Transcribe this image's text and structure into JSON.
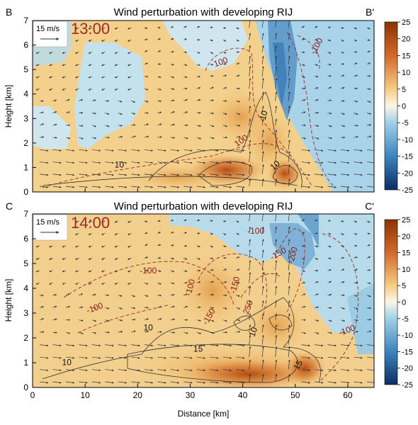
{
  "chart_data": [
    {
      "type": "heatmap",
      "panel_left_label": "B",
      "panel_right_label": "B'",
      "title": "Wind perturbation with developing RIJ",
      "time_label": "13:00",
      "reference_vector_label": "15 m/s",
      "ylabel": "Height [km]",
      "xlabel": "",
      "xlim": [
        0,
        65
      ],
      "ylim": [
        0,
        7
      ],
      "yticks": [
        0,
        1,
        2,
        3,
        4,
        5,
        6,
        7
      ],
      "xticks": [
        0,
        10,
        20,
        30,
        40,
        50,
        60
      ],
      "contour_labels": [
        {
          "text": "10",
          "x": 16.5,
          "y": 1.0,
          "color": "#111111"
        },
        {
          "text": "10",
          "x": 44.5,
          "y": 3.1,
          "color": "#111111",
          "rotate": -75
        },
        {
          "text": "10",
          "x": 46.5,
          "y": 1.0,
          "color": "#111111",
          "rotate": -40
        },
        {
          "text": "100",
          "x": 36.0,
          "y": 5.2,
          "color": "#8c1a1a",
          "rotate": -20
        },
        {
          "text": "100",
          "x": 40.0,
          "y": 2.0,
          "color": "#8c1a1a",
          "rotate": -35
        },
        {
          "text": "-100",
          "x": 54.5,
          "y": 5.9,
          "color": "#8c1a1a",
          "rotate": -60
        }
      ],
      "colorbar": {
        "min": -25,
        "max": 25,
        "ticks": [
          25,
          20,
          15,
          10,
          5,
          0,
          -5,
          -10,
          -15,
          -20,
          -25
        ]
      }
    },
    {
      "type": "heatmap",
      "panel_left_label": "C",
      "panel_right_label": "C'",
      "title": "Wind perturbation with developing RIJ",
      "time_label": "14:00",
      "reference_vector_label": "15 m/s",
      "ylabel": "Height [km]",
      "xlabel": "Distance [km]",
      "xlim": [
        0,
        65
      ],
      "ylim": [
        0,
        7
      ],
      "yticks": [
        0,
        1,
        2,
        3,
        4,
        5,
        6,
        7
      ],
      "xticks": [
        0,
        10,
        20,
        30,
        40,
        50,
        60
      ],
      "contour_labels": [
        {
          "text": "10",
          "x": 6.5,
          "y": 0.9,
          "color": "#111111"
        },
        {
          "text": "10",
          "x": 22.0,
          "y": 2.3,
          "color": "#111111"
        },
        {
          "text": "15",
          "x": 31.5,
          "y": 1.45,
          "color": "#111111"
        },
        {
          "text": "10",
          "x": 42.5,
          "y": 2.2,
          "color": "#111111",
          "rotate": -70
        },
        {
          "text": "15",
          "x": 51.0,
          "y": 0.85,
          "color": "#111111",
          "rotate": -60
        },
        {
          "text": "-100",
          "x": 22.0,
          "y": 4.6,
          "color": "#8c1a1a"
        },
        {
          "text": "-100",
          "x": 12.0,
          "y": 3.1,
          "color": "#8c1a1a",
          "rotate": -20
        },
        {
          "text": "-100",
          "x": 30.5,
          "y": 4.0,
          "color": "#8c1a1a",
          "rotate": -75
        },
        {
          "text": "-100",
          "x": 42.5,
          "y": 6.2,
          "color": "#8c1a1a"
        },
        {
          "text": "-150",
          "x": 47.0,
          "y": 5.3,
          "color": "#8c1a1a",
          "rotate": -30
        },
        {
          "text": "-150",
          "x": 39.0,
          "y": 4.1,
          "color": "#8c1a1a",
          "rotate": -75
        },
        {
          "text": "-150",
          "x": 34.0,
          "y": 2.8,
          "color": "#8c1a1a",
          "rotate": -60
        },
        {
          "text": "-200",
          "x": 50.0,
          "y": 5.3,
          "color": "#8c1a1a",
          "rotate": -75
        },
        {
          "text": "250",
          "x": 41.5,
          "y": 3.2,
          "color": "#8c1a1a",
          "rotate": -70
        },
        {
          "text": "-100",
          "x": 60.0,
          "y": 2.2,
          "color": "#8c1a1a",
          "rotate": -20
        }
      ],
      "colorbar": {
        "min": -25,
        "max": 25,
        "ticks": [
          25,
          20,
          15,
          10,
          5,
          0,
          -5,
          -10,
          -15,
          -20,
          -25
        ]
      }
    }
  ]
}
